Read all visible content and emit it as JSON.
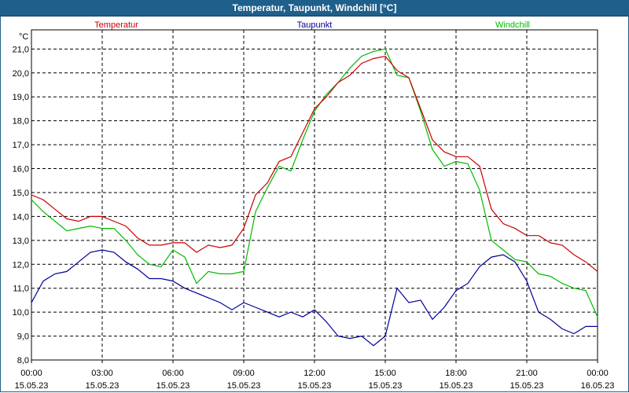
{
  "window_title": "Temperatur, Taupunkt, Windchill [°C]",
  "colors": {
    "title_bar": "#1f5f8b",
    "Temperatur": "#cc0000",
    "Taupunkt": "#000099",
    "Windchill": "#00bb00"
  },
  "chart_data": {
    "type": "line",
    "title": "Temperatur, Taupunkt, Windchill [°C]",
    "ylabel": "°C",
    "xlabel": "",
    "ylim": [
      8.0,
      21.8
    ],
    "xlim": [
      0,
      24
    ],
    "grid": true,
    "legend_placement": "top",
    "y_ticks": [
      "8,0",
      "9,0",
      "10,0",
      "11,0",
      "12,0",
      "13,0",
      "14,0",
      "15,0",
      "16,0",
      "17,0",
      "18,0",
      "19,0",
      "20,0",
      "21,0"
    ],
    "x_ticks": [
      {
        "time": "00:00",
        "date": "15.05.23"
      },
      {
        "time": "03:00",
        "date": "15.05.23"
      },
      {
        "time": "06:00",
        "date": "15.05.23"
      },
      {
        "time": "09:00",
        "date": "15.05.23"
      },
      {
        "time": "12:00",
        "date": "15.05.23"
      },
      {
        "time": "15:00",
        "date": "15.05.23"
      },
      {
        "time": "18:00",
        "date": "15.05.23"
      },
      {
        "time": "21:00",
        "date": "15.05.23"
      },
      {
        "time": "00:00",
        "date": "16.05.23"
      }
    ],
    "x": [
      0,
      0.5,
      1,
      1.5,
      2,
      2.5,
      3,
      3.5,
      4,
      4.5,
      5,
      5.5,
      6,
      6.5,
      7,
      7.5,
      8,
      8.5,
      9,
      9.5,
      10,
      10.5,
      11,
      11.5,
      12,
      12.5,
      13,
      13.5,
      14,
      14.5,
      15,
      15.5,
      16,
      16.5,
      17,
      17.5,
      18,
      18.5,
      19,
      19.5,
      20,
      20.5,
      21,
      21.5,
      22,
      22.5,
      23,
      23.5,
      24
    ],
    "series": [
      {
        "name": "Temperatur",
        "values": [
          14.9,
          14.7,
          14.3,
          13.9,
          13.8,
          14.0,
          14.0,
          13.8,
          13.6,
          13.1,
          12.8,
          12.8,
          12.9,
          12.9,
          12.5,
          12.8,
          12.7,
          12.8,
          13.5,
          14.9,
          15.4,
          16.3,
          16.5,
          17.5,
          18.5,
          19.0,
          19.6,
          19.9,
          20.4,
          20.6,
          20.7,
          20.1,
          19.8,
          18.5,
          17.2,
          16.7,
          16.5,
          16.5,
          16.1,
          14.3,
          13.7,
          13.5,
          13.2,
          13.2,
          12.9,
          12.8,
          12.4,
          12.1,
          11.7
        ]
      },
      {
        "name": "Taupunkt",
        "values": [
          10.4,
          11.3,
          11.6,
          11.7,
          12.1,
          12.5,
          12.6,
          12.5,
          12.1,
          11.8,
          11.4,
          11.4,
          11.3,
          11.0,
          10.8,
          10.6,
          10.4,
          10.1,
          10.4,
          10.2,
          10.0,
          9.8,
          10.0,
          9.8,
          10.1,
          9.6,
          9.0,
          8.9,
          9.0,
          8.6,
          9.0,
          11.0,
          10.4,
          10.5,
          9.7,
          10.2,
          10.9,
          11.2,
          11.9,
          12.3,
          12.4,
          12.1,
          11.3,
          10.0,
          9.7,
          9.3,
          9.1,
          9.4,
          9.4
        ]
      },
      {
        "name": "Windchill",
        "values": [
          14.7,
          14.2,
          13.8,
          13.4,
          13.5,
          13.6,
          13.5,
          13.5,
          13.0,
          12.4,
          12.0,
          11.9,
          12.6,
          12.3,
          11.2,
          11.7,
          11.6,
          11.6,
          11.7,
          14.2,
          15.2,
          16.1,
          15.9,
          17.2,
          18.4,
          19.1,
          19.6,
          20.2,
          20.7,
          20.9,
          21.0,
          19.9,
          19.8,
          18.4,
          16.8,
          16.1,
          16.3,
          16.2,
          15.1,
          13.0,
          12.6,
          12.2,
          12.1,
          11.6,
          11.5,
          11.2,
          11.0,
          10.9,
          9.8
        ]
      }
    ]
  }
}
